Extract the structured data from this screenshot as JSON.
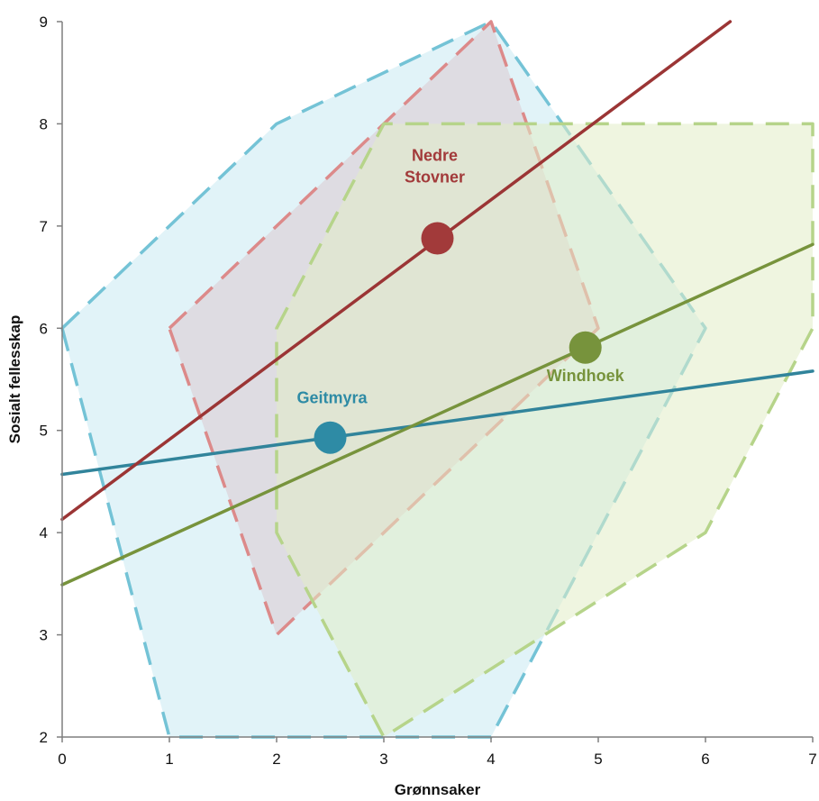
{
  "chart_data": {
    "type": "scatter",
    "title": "",
    "xlabel": "Grønnsaker",
    "ylabel": "Sosialt fellesskap",
    "xlim": [
      0,
      7
    ],
    "ylim": [
      2,
      9
    ],
    "x_ticks": [
      "0",
      "1",
      "2",
      "3",
      "4",
      "5",
      "6",
      "7"
    ],
    "y_ticks": [
      "2",
      "3",
      "4",
      "5",
      "6",
      "7",
      "8",
      "9"
    ],
    "grid": false,
    "legend": "none",
    "series": [
      {
        "name": "Geitmyra",
        "color": "#2e8ba5",
        "hull_color": "#74c3d6",
        "hull_fill": "#c9e9f3",
        "line_color": "#31849b",
        "mean": [
          2.5,
          4.93
        ],
        "trend": [
          [
            0,
            4.57
          ],
          [
            7,
            5.58
          ]
        ],
        "hull": [
          [
            0,
            6
          ],
          [
            2,
            8
          ],
          [
            4,
            9
          ],
          [
            6,
            6
          ],
          [
            4,
            2
          ],
          [
            1,
            2
          ],
          [
            0,
            6
          ]
        ]
      },
      {
        "name": "Nedre\nStovner",
        "label_lines": [
          "Nedre",
          "Stovner"
        ],
        "color": "#a23a3a",
        "hull_color": "#dc8a8a",
        "hull_fill": "#dcc8cf",
        "line_color": "#9b3535",
        "mean": [
          3.5,
          6.88
        ],
        "trend": [
          [
            0,
            4.13
          ],
          [
            6.23,
            9
          ]
        ],
        "hull": [
          [
            1,
            6
          ],
          [
            4,
            9
          ],
          [
            5,
            6
          ],
          [
            2,
            3
          ],
          [
            1,
            6
          ]
        ]
      },
      {
        "name": "Windhoek",
        "color": "#77933c",
        "hull_color": "#b6d48a",
        "hull_fill": "#e1edc7",
        "line_color": "#77933c",
        "mean": [
          4.88,
          5.81
        ],
        "trend": [
          [
            0,
            3.49
          ],
          [
            7,
            6.82
          ]
        ],
        "hull": [
          [
            2,
            6
          ],
          [
            3,
            8
          ],
          [
            7,
            8
          ],
          [
            7,
            6
          ],
          [
            6,
            4
          ],
          [
            3,
            2
          ],
          [
            2,
            4
          ],
          [
            2,
            6
          ]
        ]
      }
    ]
  }
}
